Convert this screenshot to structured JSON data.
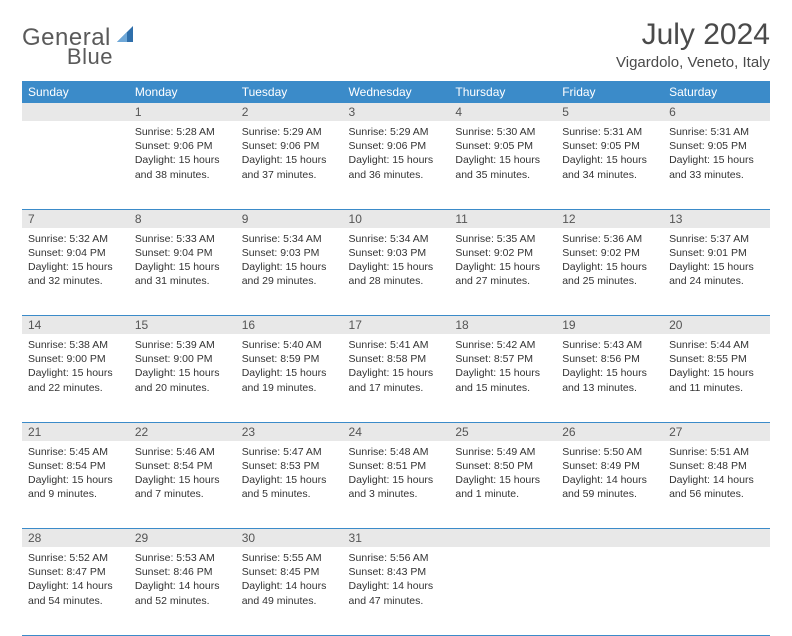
{
  "logo": {
    "text1": "General",
    "text2": "Blue",
    "accent_color": "#2f6fab"
  },
  "title": "July 2024",
  "location": "Vigardolo, Veneto, Italy",
  "colors": {
    "header_bg": "#3b8bc9",
    "header_text": "#ffffff",
    "daynum_bg": "#e8e8e8",
    "cell_border": "#3b8bc9",
    "body_text": "#333333"
  },
  "typography": {
    "title_fontsize": 30,
    "location_fontsize": 15,
    "header_fontsize": 12,
    "cell_fontsize": 10.5
  },
  "weekdays": [
    "Sunday",
    "Monday",
    "Tuesday",
    "Wednesday",
    "Thursday",
    "Friday",
    "Saturday"
  ],
  "weeks": [
    [
      null,
      {
        "n": "1",
        "sr": "5:28 AM",
        "ss": "9:06 PM",
        "dl": "15 hours and 38 minutes."
      },
      {
        "n": "2",
        "sr": "5:29 AM",
        "ss": "9:06 PM",
        "dl": "15 hours and 37 minutes."
      },
      {
        "n": "3",
        "sr": "5:29 AM",
        "ss": "9:06 PM",
        "dl": "15 hours and 36 minutes."
      },
      {
        "n": "4",
        "sr": "5:30 AM",
        "ss": "9:05 PM",
        "dl": "15 hours and 35 minutes."
      },
      {
        "n": "5",
        "sr": "5:31 AM",
        "ss": "9:05 PM",
        "dl": "15 hours and 34 minutes."
      },
      {
        "n": "6",
        "sr": "5:31 AM",
        "ss": "9:05 PM",
        "dl": "15 hours and 33 minutes."
      }
    ],
    [
      {
        "n": "7",
        "sr": "5:32 AM",
        "ss": "9:04 PM",
        "dl": "15 hours and 32 minutes."
      },
      {
        "n": "8",
        "sr": "5:33 AM",
        "ss": "9:04 PM",
        "dl": "15 hours and 31 minutes."
      },
      {
        "n": "9",
        "sr": "5:34 AM",
        "ss": "9:03 PM",
        "dl": "15 hours and 29 minutes."
      },
      {
        "n": "10",
        "sr": "5:34 AM",
        "ss": "9:03 PM",
        "dl": "15 hours and 28 minutes."
      },
      {
        "n": "11",
        "sr": "5:35 AM",
        "ss": "9:02 PM",
        "dl": "15 hours and 27 minutes."
      },
      {
        "n": "12",
        "sr": "5:36 AM",
        "ss": "9:02 PM",
        "dl": "15 hours and 25 minutes."
      },
      {
        "n": "13",
        "sr": "5:37 AM",
        "ss": "9:01 PM",
        "dl": "15 hours and 24 minutes."
      }
    ],
    [
      {
        "n": "14",
        "sr": "5:38 AM",
        "ss": "9:00 PM",
        "dl": "15 hours and 22 minutes."
      },
      {
        "n": "15",
        "sr": "5:39 AM",
        "ss": "9:00 PM",
        "dl": "15 hours and 20 minutes."
      },
      {
        "n": "16",
        "sr": "5:40 AM",
        "ss": "8:59 PM",
        "dl": "15 hours and 19 minutes."
      },
      {
        "n": "17",
        "sr": "5:41 AM",
        "ss": "8:58 PM",
        "dl": "15 hours and 17 minutes."
      },
      {
        "n": "18",
        "sr": "5:42 AM",
        "ss": "8:57 PM",
        "dl": "15 hours and 15 minutes."
      },
      {
        "n": "19",
        "sr": "5:43 AM",
        "ss": "8:56 PM",
        "dl": "15 hours and 13 minutes."
      },
      {
        "n": "20",
        "sr": "5:44 AM",
        "ss": "8:55 PM",
        "dl": "15 hours and 11 minutes."
      }
    ],
    [
      {
        "n": "21",
        "sr": "5:45 AM",
        "ss": "8:54 PM",
        "dl": "15 hours and 9 minutes."
      },
      {
        "n": "22",
        "sr": "5:46 AM",
        "ss": "8:54 PM",
        "dl": "15 hours and 7 minutes."
      },
      {
        "n": "23",
        "sr": "5:47 AM",
        "ss": "8:53 PM",
        "dl": "15 hours and 5 minutes."
      },
      {
        "n": "24",
        "sr": "5:48 AM",
        "ss": "8:51 PM",
        "dl": "15 hours and 3 minutes."
      },
      {
        "n": "25",
        "sr": "5:49 AM",
        "ss": "8:50 PM",
        "dl": "15 hours and 1 minute."
      },
      {
        "n": "26",
        "sr": "5:50 AM",
        "ss": "8:49 PM",
        "dl": "14 hours and 59 minutes."
      },
      {
        "n": "27",
        "sr": "5:51 AM",
        "ss": "8:48 PM",
        "dl": "14 hours and 56 minutes."
      }
    ],
    [
      {
        "n": "28",
        "sr": "5:52 AM",
        "ss": "8:47 PM",
        "dl": "14 hours and 54 minutes."
      },
      {
        "n": "29",
        "sr": "5:53 AM",
        "ss": "8:46 PM",
        "dl": "14 hours and 52 minutes."
      },
      {
        "n": "30",
        "sr": "5:55 AM",
        "ss": "8:45 PM",
        "dl": "14 hours and 49 minutes."
      },
      {
        "n": "31",
        "sr": "5:56 AM",
        "ss": "8:43 PM",
        "dl": "14 hours and 47 minutes."
      },
      null,
      null,
      null
    ]
  ],
  "labels": {
    "sunrise": "Sunrise:",
    "sunset": "Sunset:",
    "daylight": "Daylight:"
  }
}
